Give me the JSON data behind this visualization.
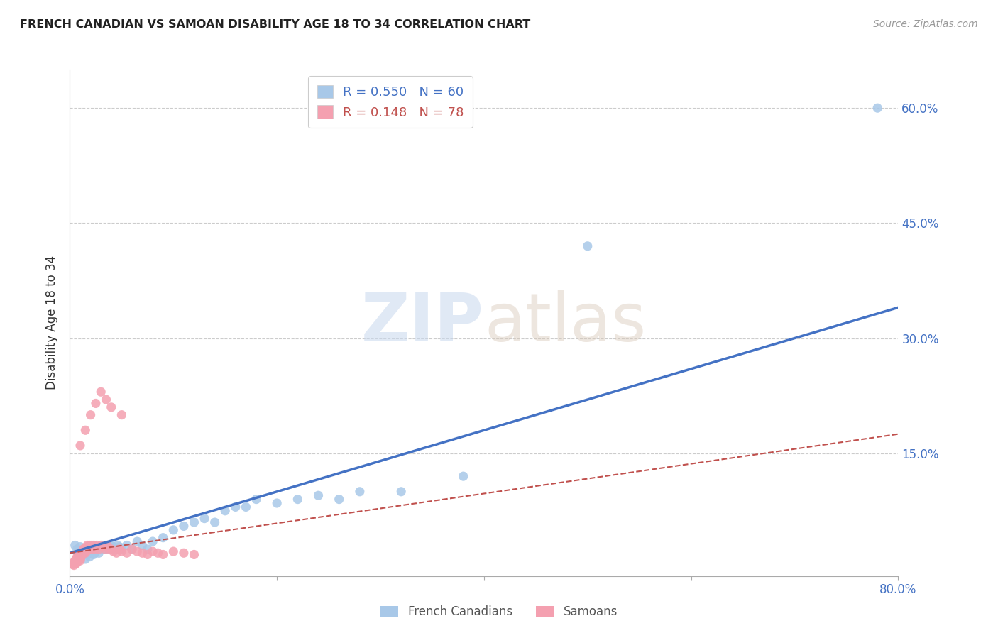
{
  "title": "FRENCH CANADIAN VS SAMOAN DISABILITY AGE 18 TO 34 CORRELATION CHART",
  "source": "Source: ZipAtlas.com",
  "ylabel": "Disability Age 18 to 34",
  "xlim": [
    0.0,
    0.8
  ],
  "ylim": [
    -0.01,
    0.65
  ],
  "xticks": [
    0.0,
    0.2,
    0.4,
    0.6,
    0.8
  ],
  "xticklabels": [
    "0.0%",
    "",
    "",
    "",
    "80.0%"
  ],
  "yticks": [
    0.0,
    0.15,
    0.3,
    0.45,
    0.6
  ],
  "right_yticklabels": [
    "",
    "15.0%",
    "30.0%",
    "45.0%",
    "60.0%"
  ],
  "legend_blue_label": "French Canadians",
  "legend_pink_label": "Samoans",
  "legend_blue_r": "R = 0.550",
  "legend_blue_n": "N = 60",
  "legend_pink_r": "R = 0.148",
  "legend_pink_n": "N = 78",
  "blue_color": "#a8c8e8",
  "pink_color": "#f4a0b0",
  "trendline_blue_color": "#4472c4",
  "trendline_pink_color": "#c0504d",
  "axis_tick_color": "#4472c4",
  "title_color": "#222222",
  "grid_color": "#cccccc",
  "watermark_zip": "ZIP",
  "watermark_atlas": "atlas",
  "blue_scatter_x": [
    0.005,
    0.007,
    0.008,
    0.01,
    0.01,
    0.012,
    0.013,
    0.014,
    0.015,
    0.016,
    0.017,
    0.018,
    0.019,
    0.02,
    0.021,
    0.022,
    0.023,
    0.024,
    0.025,
    0.026,
    0.027,
    0.028,
    0.03,
    0.031,
    0.032,
    0.033,
    0.035,
    0.036,
    0.038,
    0.04,
    0.042,
    0.044,
    0.046,
    0.048,
    0.05,
    0.055,
    0.06,
    0.065,
    0.07,
    0.075,
    0.08,
    0.09,
    0.1,
    0.11,
    0.12,
    0.13,
    0.14,
    0.15,
    0.16,
    0.17,
    0.18,
    0.2,
    0.22,
    0.24,
    0.26,
    0.28,
    0.32,
    0.38,
    0.5,
    0.78
  ],
  "blue_scatter_y": [
    0.03,
    0.025,
    0.02,
    0.028,
    0.015,
    0.022,
    0.018,
    0.025,
    0.012,
    0.02,
    0.018,
    0.022,
    0.015,
    0.02,
    0.023,
    0.025,
    0.018,
    0.02,
    0.022,
    0.024,
    0.025,
    0.02,
    0.025,
    0.03,
    0.028,
    0.025,
    0.03,
    0.025,
    0.028,
    0.03,
    0.028,
    0.025,
    0.03,
    0.028,
    0.025,
    0.03,
    0.025,
    0.035,
    0.03,
    0.025,
    0.035,
    0.04,
    0.05,
    0.055,
    0.06,
    0.065,
    0.06,
    0.075,
    0.08,
    0.08,
    0.09,
    0.085,
    0.09,
    0.095,
    0.09,
    0.1,
    0.1,
    0.12,
    0.42,
    0.6
  ],
  "pink_scatter_x": [
    0.003,
    0.004,
    0.004,
    0.005,
    0.005,
    0.005,
    0.006,
    0.006,
    0.006,
    0.007,
    0.007,
    0.007,
    0.008,
    0.008,
    0.008,
    0.009,
    0.009,
    0.01,
    0.01,
    0.01,
    0.01,
    0.011,
    0.011,
    0.012,
    0.012,
    0.012,
    0.013,
    0.013,
    0.014,
    0.014,
    0.015,
    0.015,
    0.016,
    0.016,
    0.017,
    0.017,
    0.018,
    0.018,
    0.019,
    0.02,
    0.02,
    0.021,
    0.022,
    0.023,
    0.024,
    0.025,
    0.026,
    0.027,
    0.028,
    0.03,
    0.032,
    0.034,
    0.036,
    0.038,
    0.04,
    0.042,
    0.045,
    0.048,
    0.05,
    0.055,
    0.06,
    0.065,
    0.07,
    0.075,
    0.08,
    0.085,
    0.09,
    0.1,
    0.11,
    0.12,
    0.01,
    0.015,
    0.02,
    0.025,
    0.03,
    0.035,
    0.04,
    0.05
  ],
  "pink_scatter_y": [
    0.005,
    0.008,
    0.004,
    0.006,
    0.01,
    0.007,
    0.008,
    0.012,
    0.006,
    0.01,
    0.008,
    0.015,
    0.012,
    0.01,
    0.015,
    0.012,
    0.018,
    0.01,
    0.015,
    0.012,
    0.02,
    0.018,
    0.015,
    0.02,
    0.018,
    0.022,
    0.02,
    0.025,
    0.022,
    0.025,
    0.02,
    0.025,
    0.022,
    0.028,
    0.025,
    0.03,
    0.028,
    0.025,
    0.03,
    0.025,
    0.028,
    0.03,
    0.025,
    0.03,
    0.028,
    0.025,
    0.03,
    0.028,
    0.025,
    0.03,
    0.028,
    0.025,
    0.03,
    0.025,
    0.025,
    0.022,
    0.02,
    0.025,
    0.022,
    0.02,
    0.025,
    0.022,
    0.02,
    0.018,
    0.022,
    0.02,
    0.018,
    0.022,
    0.02,
    0.018,
    0.16,
    0.18,
    0.2,
    0.215,
    0.23,
    0.22,
    0.21,
    0.2
  ],
  "blue_trend_x": [
    0.0,
    0.8
  ],
  "blue_trend_y": [
    0.02,
    0.34
  ],
  "pink_trend_x": [
    0.0,
    0.8
  ],
  "pink_trend_y": [
    0.02,
    0.175
  ]
}
